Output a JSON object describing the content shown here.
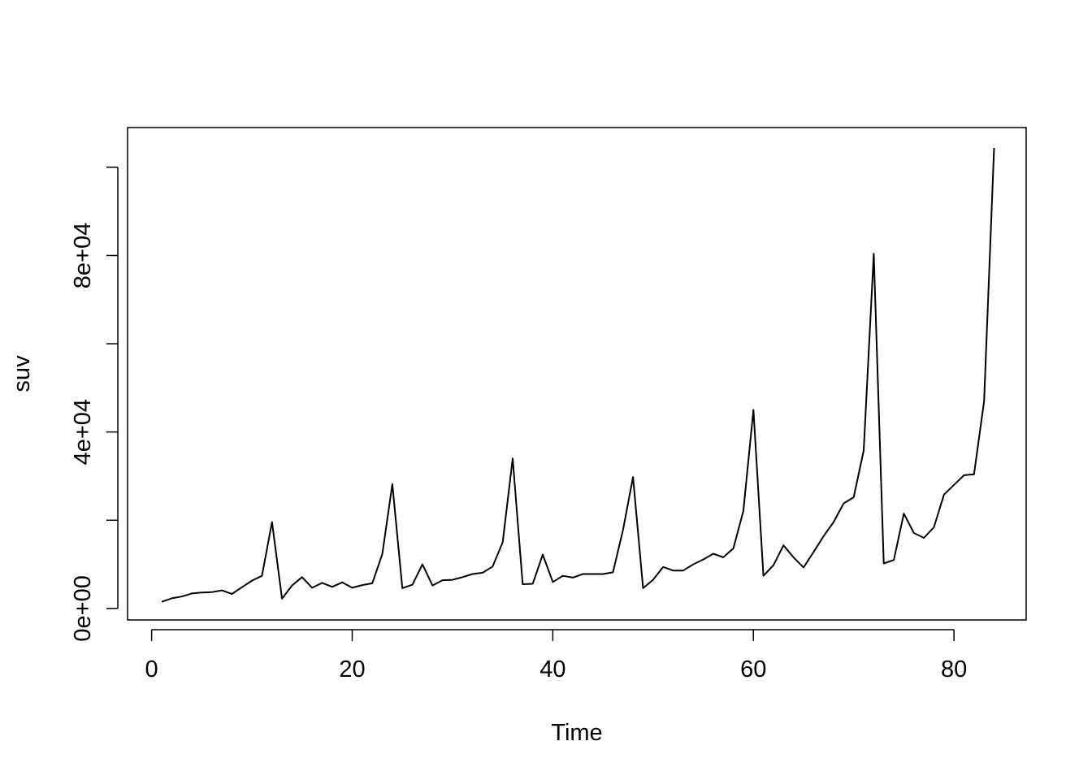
{
  "chart_data": {
    "type": "line",
    "title": "",
    "xlabel": "Time",
    "ylabel": "suv",
    "xlim": [
      -2.4,
      87.2
    ],
    "ylim": [
      -2600,
      109000
    ],
    "x_ticks": [
      0,
      20,
      40,
      60,
      80
    ],
    "x_tick_labels": [
      "0",
      "20",
      "40",
      "60",
      "80"
    ],
    "y_ticks": [
      0,
      20000,
      40000,
      60000,
      80000,
      100000
    ],
    "y_tick_labels": [
      "0e+00",
      "",
      "4e+04",
      "",
      "8e+04",
      ""
    ],
    "grid": false,
    "legend": "none",
    "series": [
      {
        "color": "#000000",
        "x": [
          1,
          2,
          3,
          4,
          5,
          6,
          7,
          8,
          9,
          10,
          11,
          12,
          13,
          14,
          15,
          16,
          17,
          18,
          19,
          20,
          21,
          22,
          23,
          24,
          25,
          26,
          27,
          28,
          29,
          30,
          31,
          32,
          33,
          34,
          35,
          36,
          37,
          38,
          39,
          40,
          41,
          42,
          43,
          44,
          45,
          46,
          47,
          48,
          49,
          50,
          51,
          52,
          53,
          54,
          55,
          56,
          57,
          58,
          59,
          60,
          61,
          62,
          63,
          64,
          65,
          66,
          67,
          68,
          69,
          70,
          71,
          72,
          73,
          74,
          75,
          76,
          77,
          78,
          79,
          80,
          81,
          82,
          83,
          84
        ],
        "values": [
          1500,
          2300,
          2700,
          3400,
          3600,
          3700,
          4100,
          3300,
          4800,
          6300,
          7400,
          19600,
          2200,
          5200,
          7100,
          4700,
          5800,
          4900,
          5900,
          4700,
          5300,
          5700,
          12300,
          28200,
          4600,
          5400,
          10000,
          5200,
          6400,
          6500,
          7100,
          7800,
          8100,
          9500,
          15000,
          34000,
          5500,
          5600,
          12200,
          6000,
          7400,
          7000,
          7800,
          7800,
          7800,
          8200,
          17800,
          29800,
          4600,
          6500,
          9400,
          8600,
          8600,
          10000,
          11100,
          12400,
          11600,
          13600,
          22100,
          45000,
          7400,
          9800,
          14300,
          11600,
          9300,
          12800,
          16400,
          19600,
          23800,
          25200,
          35800,
          80400,
          10200,
          11000,
          21500,
          17100,
          16000,
          18400,
          25800,
          28000,
          30200,
          30400,
          47000,
          104400
        ]
      }
    ]
  }
}
